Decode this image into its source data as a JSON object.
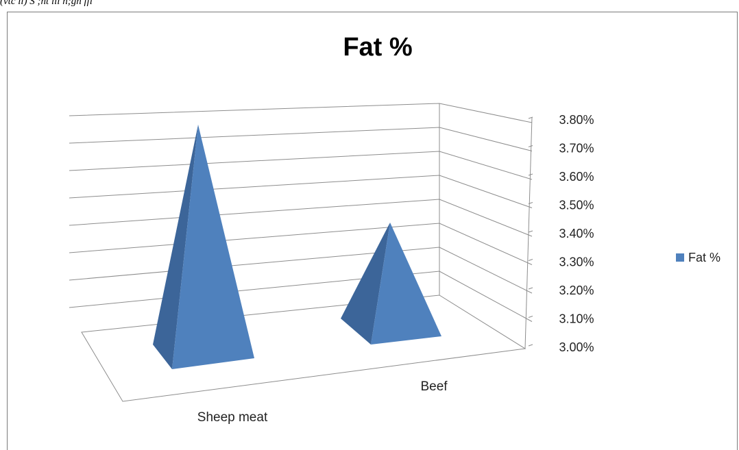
{
  "caption": "(vtc ll) S ;ht lil h;gh ffi",
  "chart_data": {
    "type": "bar",
    "shape": "pyramid-3d",
    "title": "Fat %",
    "categories": [
      "Sheep meat",
      "Beef"
    ],
    "series": [
      {
        "name": "Fat %",
        "values": [
          3.76,
          3.34
        ],
        "color": "#4F81BD"
      }
    ],
    "ylim": [
      3.0,
      3.8
    ],
    "y_ticks": [
      "3.80%",
      "3.70%",
      "3.60%",
      "3.50%",
      "3.40%",
      "3.30%",
      "3.20%",
      "3.10%",
      "3.00%"
    ],
    "legend_position": "right",
    "grid": true
  }
}
